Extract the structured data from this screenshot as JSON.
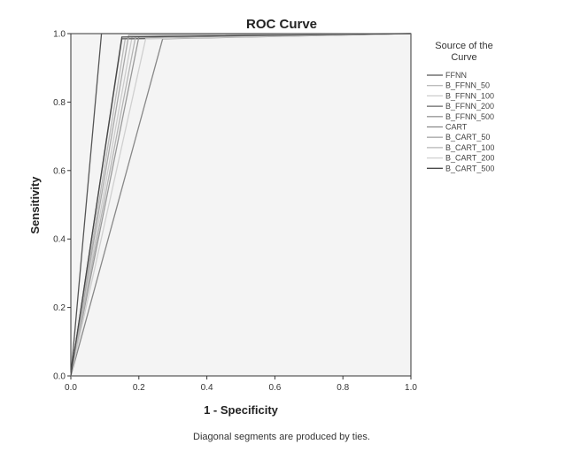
{
  "chart_data": {
    "type": "line",
    "title": "ROC Curve",
    "xlabel": "1 - Specificity",
    "ylabel": "Sensitivity",
    "xlim": [
      0,
      1
    ],
    "ylim": [
      0,
      1
    ],
    "x_ticks": [
      "0.0",
      "0.2",
      "0.4",
      "0.6",
      "0.8",
      "1.0"
    ],
    "y_ticks": [
      "0.0",
      "0.2",
      "0.4",
      "0.6",
      "0.8",
      "1.0"
    ],
    "legend_title": [
      "Source of the",
      "Curve"
    ],
    "legend_position": "right",
    "grid": false,
    "footnote": "Diagonal segments are produced by ties.",
    "series": [
      {
        "name": "FFNN",
        "color": "#555555",
        "points": [
          [
            0,
            0
          ],
          [
            0.09,
            1.0
          ],
          [
            1,
            1
          ]
        ]
      },
      {
        "name": "B_FFNN_50",
        "color": "#bbbbbb",
        "points": [
          [
            0,
            0
          ],
          [
            0.16,
            0.985
          ],
          [
            0.2,
            0.985
          ],
          [
            1,
            1
          ]
        ]
      },
      {
        "name": "B_FFNN_100",
        "color": "#cccccc",
        "points": [
          [
            0,
            0
          ],
          [
            0.18,
            0.99
          ],
          [
            1,
            1
          ]
        ]
      },
      {
        "name": "B_FFNN_200",
        "color": "#666666",
        "points": [
          [
            0,
            0
          ],
          [
            0.15,
            0.985
          ],
          [
            0.18,
            0.985
          ],
          [
            1,
            1
          ]
        ]
      },
      {
        "name": "B_FFNN_500",
        "color": "#999999",
        "points": [
          [
            0,
            0
          ],
          [
            0.2,
            0.99
          ],
          [
            1,
            1
          ]
        ]
      },
      {
        "name": "CART",
        "color": "#888888",
        "points": [
          [
            0,
            0
          ],
          [
            0.27,
            0.985
          ],
          [
            1,
            1
          ]
        ]
      },
      {
        "name": "B_CART_50",
        "color": "#aaaaaa",
        "points": [
          [
            0,
            0
          ],
          [
            0.17,
            0.995
          ],
          [
            1,
            1
          ]
        ]
      },
      {
        "name": "B_CART_100",
        "color": "#b5b5b5",
        "points": [
          [
            0,
            0
          ],
          [
            0.19,
            0.99
          ],
          [
            1,
            1
          ]
        ]
      },
      {
        "name": "B_CART_200",
        "color": "#d0d0d0",
        "points": [
          [
            0,
            0
          ],
          [
            0.22,
            0.985
          ],
          [
            1,
            1
          ]
        ]
      },
      {
        "name": "B_CART_500",
        "color": "#4a4a4a",
        "points": [
          [
            0,
            0
          ],
          [
            0.15,
            0.99
          ],
          [
            1,
            1
          ]
        ]
      }
    ]
  }
}
